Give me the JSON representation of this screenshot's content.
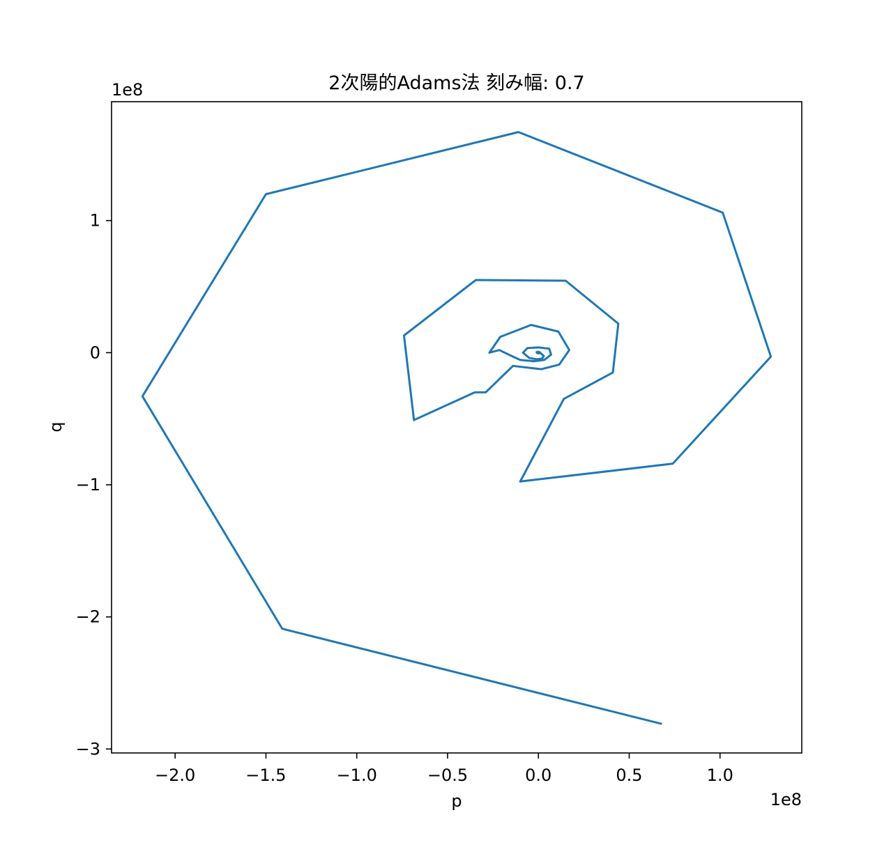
{
  "chart_data": {
    "type": "line",
    "title": "2次陽的Adams法 刻み幅: 0.7",
    "xlabel": "p",
    "ylabel": "q",
    "x_offset_label": "1e8",
    "y_offset_label": "1e8",
    "xlim": [
      -2.35,
      1.45
    ],
    "ylim": [
      -3.03,
      1.9
    ],
    "x_ticks": [
      {
        "value": -2.0,
        "label": "−2.0"
      },
      {
        "value": -1.5,
        "label": "−1.5"
      },
      {
        "value": -1.0,
        "label": "−1.0"
      },
      {
        "value": -0.5,
        "label": "−0.5"
      },
      {
        "value": 0.0,
        "label": "0.0"
      },
      {
        "value": 0.5,
        "label": "0.5"
      },
      {
        "value": 1.0,
        "label": "1.0"
      }
    ],
    "y_ticks": [
      {
        "value": -3,
        "label": "−3"
      },
      {
        "value": -2,
        "label": "−2"
      },
      {
        "value": -1,
        "label": "−1"
      },
      {
        "value": 0,
        "label": "0"
      },
      {
        "value": 1,
        "label": "1"
      }
    ],
    "grid": false,
    "legend": "none",
    "series": [
      {
        "color": "#1f77b4",
        "x": [
          0.0,
          0.006,
          0.008,
          0.002,
          -0.006,
          -0.01,
          -0.004,
          0.006,
          0.01,
          0.03,
          0.02,
          -0.01,
          -0.05,
          -0.085,
          -0.06,
          0.0,
          0.06,
          0.07,
          0.032,
          -0.025,
          -0.1,
          -0.14,
          -0.215,
          -0.27,
          -0.21,
          -0.04,
          0.11,
          0.17,
          0.115,
          0.015,
          -0.14,
          -0.29,
          -0.35,
          -0.685,
          -0.74,
          -0.345,
          0.15,
          0.44,
          0.41,
          0.14,
          -0.1,
          0.74,
          1.28,
          1.015,
          -0.11,
          -1.5,
          -2.18,
          -1.41,
          0.68
        ],
        "y": [
          0.0,
          0.003,
          -0.002,
          -0.006,
          -0.003,
          0.004,
          0.007,
          0.005,
          0.0,
          -0.025,
          -0.045,
          -0.05,
          -0.04,
          0.0,
          0.035,
          0.04,
          0.03,
          -0.015,
          -0.055,
          -0.065,
          -0.055,
          -0.03,
          0.02,
          0.0,
          0.12,
          0.21,
          0.16,
          0.02,
          -0.09,
          -0.125,
          -0.1,
          -0.3,
          -0.3,
          -0.51,
          0.13,
          0.55,
          0.545,
          0.22,
          -0.15,
          -0.35,
          -0.975,
          -0.84,
          -0.03,
          1.06,
          1.67,
          1.2,
          -0.33,
          -2.09,
          -2.81
        ]
      }
    ]
  }
}
